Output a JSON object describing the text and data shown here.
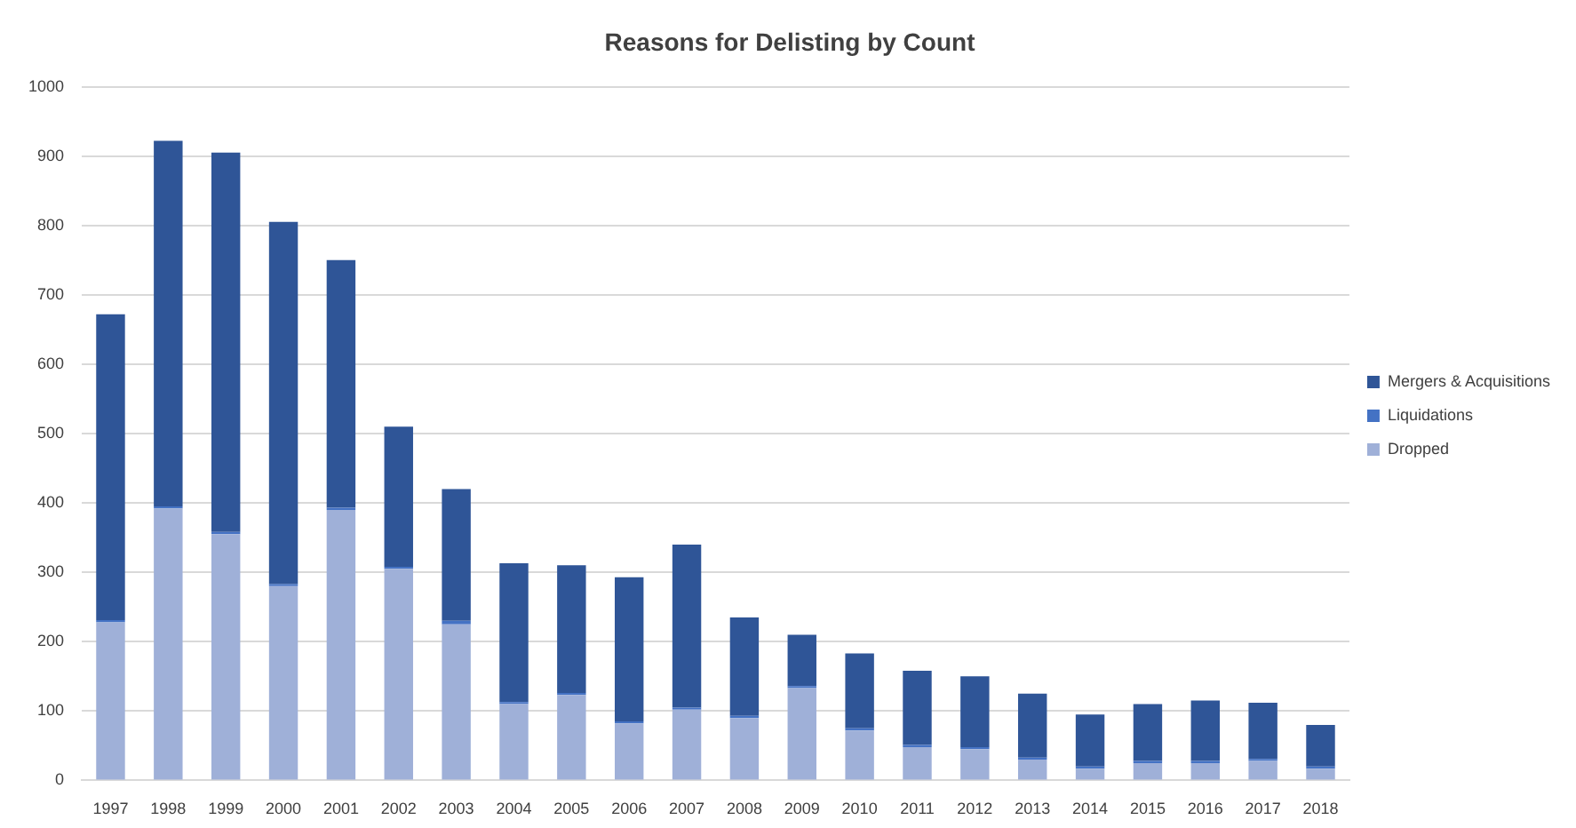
{
  "chart_data": {
    "type": "bar",
    "title": "Reasons for Delisting by Count",
    "stacked": true,
    "categories": [
      "1997",
      "1998",
      "1999",
      "2000",
      "2001",
      "2002",
      "2003",
      "2004",
      "2005",
      "2006",
      "2007",
      "2008",
      "2009",
      "2010",
      "2011",
      "2012",
      "2013",
      "2014",
      "2015",
      "2016",
      "2017",
      "2018"
    ],
    "series": [
      {
        "name": "Dropped",
        "color": "#9fb0d8",
        "values": [
          228,
          392,
          355,
          280,
          390,
          305,
          225,
          110,
          123,
          82,
          102,
          90,
          133,
          72,
          48,
          45,
          30,
          17,
          25,
          25,
          28,
          17
        ]
      },
      {
        "name": "Liquidations",
        "color": "#4472c4",
        "values": [
          3,
          3,
          3,
          3,
          3,
          3,
          5,
          3,
          3,
          3,
          3,
          3,
          3,
          3,
          3,
          3,
          3,
          3,
          3,
          3,
          3,
          3
        ]
      },
      {
        "name": "Mergers & Acquisitions",
        "color": "#2f5597",
        "values": [
          441,
          527,
          547,
          522,
          357,
          202,
          190,
          200,
          184,
          208,
          235,
          142,
          74,
          108,
          107,
          102,
          92,
          75,
          82,
          87,
          81,
          60
        ]
      }
    ],
    "ylim": [
      0,
      1000
    ],
    "yticks": [
      0,
      100,
      200,
      300,
      400,
      500,
      600,
      700,
      800,
      900,
      1000
    ],
    "grid": "y",
    "legend": "right"
  }
}
